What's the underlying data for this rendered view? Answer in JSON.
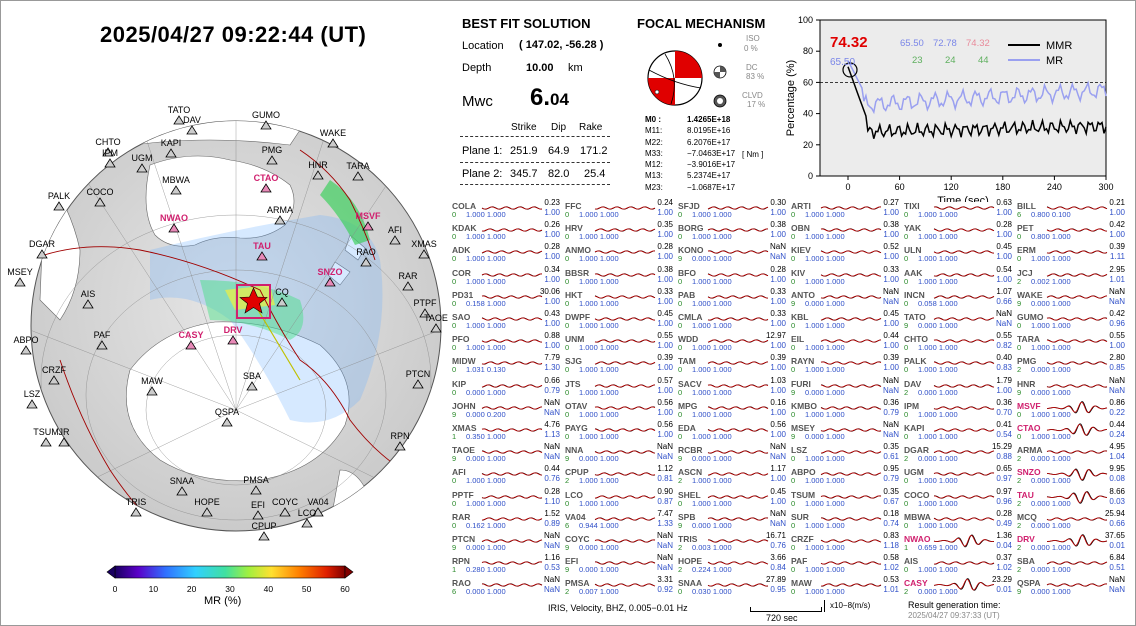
{
  "datetime": "2025/04/27  09:22:44 (UT)",
  "map": {
    "stations": [
      {
        "n": "TATO",
        "hl": false
      },
      {
        "n": "GUMO",
        "hl": false
      },
      {
        "n": "DAV",
        "hl": false
      },
      {
        "n": "CHTO",
        "hl": false
      },
      {
        "n": "KAPI",
        "hl": false
      },
      {
        "n": "IPM",
        "hl": false
      },
      {
        "n": "UGM",
        "hl": false
      },
      {
        "n": "PMG",
        "hl": false
      },
      {
        "n": "WAKE",
        "hl": false
      },
      {
        "n": "HNR",
        "hl": false
      },
      {
        "n": "TARA",
        "hl": false
      },
      {
        "n": "PALK",
        "hl": false
      },
      {
        "n": "COCO",
        "hl": false
      },
      {
        "n": "MBWA",
        "hl": false
      },
      {
        "n": "CTAO",
        "hl": true
      },
      {
        "n": "NWAO",
        "hl": true
      },
      {
        "n": "ARMA",
        "hl": false
      },
      {
        "n": "MSVF",
        "hl": true
      },
      {
        "n": "AFI",
        "hl": false
      },
      {
        "n": "DGAR",
        "hl": false
      },
      {
        "n": "TAU",
        "hl": true
      },
      {
        "n": "XMAS",
        "hl": false
      },
      {
        "n": "RAO",
        "hl": false
      },
      {
        "n": "SNZO",
        "hl": true
      },
      {
        "n": "RAR",
        "hl": false
      },
      {
        "n": "MSEY",
        "hl": false
      },
      {
        "n": "AIS",
        "hl": false
      },
      {
        "n": "PTPF",
        "hl": false
      },
      {
        "n": "TAOE",
        "hl": false
      },
      {
        "n": "PAF",
        "hl": false
      },
      {
        "n": "CASY",
        "hl": true
      },
      {
        "n": "DRV",
        "hl": true
      },
      {
        "n": "ABPO",
        "hl": false
      },
      {
        "n": "CRZF",
        "hl": false
      },
      {
        "n": "MAW",
        "hl": false
      },
      {
        "n": "SBA",
        "hl": false
      },
      {
        "n": "PTCN",
        "hl": false
      },
      {
        "n": "LSZ",
        "hl": false
      },
      {
        "n": "QSPA",
        "hl": false
      },
      {
        "n": "TSUM",
        "hl": false
      },
      {
        "n": "JR",
        "hl": false
      },
      {
        "n": "RPN",
        "hl": false
      },
      {
        "n": "SNAA",
        "hl": false
      },
      {
        "n": "PMSA",
        "hl": false
      },
      {
        "n": "TRIS",
        "hl": false
      },
      {
        "n": "HOPE",
        "hl": false
      },
      {
        "n": "EFI",
        "hl": false
      },
      {
        "n": "COYC",
        "hl": false
      },
      {
        "n": "VA04",
        "hl": false
      },
      {
        "n": "LCO",
        "hl": false
      },
      {
        "n": "CPUP",
        "hl": false
      },
      {
        "n": "CQ",
        "hl": false
      }
    ],
    "colorbar": {
      "ticks": [
        "0",
        "10",
        "20",
        "30",
        "40",
        "50",
        "60"
      ],
      "label": "MR (%)"
    }
  },
  "solution": {
    "title": "BEST FIT SOLUTION",
    "location_label": "Location",
    "location": "( 147.02,  -56.28 )",
    "depth_label": "Depth",
    "depth": "10.00",
    "depth_unit": "km",
    "mw_label": "Mwc",
    "mw_int": "6.",
    "mw_dec": "04",
    "col_strike": "Strike",
    "col_dip": "Dip",
    "col_rake": "Rake",
    "plane1_label": "Plane 1:",
    "p1_strike": "251.9",
    "p1_dip": "64.9",
    "p1_rake": "171.2",
    "plane2_label": "Plane 2:",
    "p2_strike": "345.7",
    "p2_dip": "82.0",
    "p2_rake": "25.4"
  },
  "mechanism": {
    "title": "FOCAL MECHANISM",
    "iso_label": "ISO",
    "iso": "0  %",
    "dc_label": "DC",
    "dc": "83 %",
    "clvd_label": "CLVD",
    "clvd": "17 %",
    "tensor": [
      {
        "k": "M0",
        "sep": ":",
        "v": "1.4265E+18"
      },
      {
        "k": "M11:",
        "sep": "",
        "v": "8.0195E+16"
      },
      {
        "k": "M22:",
        "sep": "",
        "v": "6.2076E+17"
      },
      {
        "k": "M33:",
        "sep": "",
        "v": "−7.0463E+17"
      },
      {
        "k": "M12:",
        "sep": "",
        "v": "−3.9016E+17"
      },
      {
        "k": "M13:",
        "sep": "",
        "v": "5.2374E+17"
      },
      {
        "k": "M23:",
        "sep": "",
        "v": "−1.0687E+17"
      }
    ],
    "unit": "[ Nm ]"
  },
  "graph": {
    "ylabel": "Percentage (%)",
    "xlabel": "Time (sec)",
    "yticks": [
      "0",
      "20",
      "40",
      "60",
      "80",
      "100"
    ],
    "xticks": [
      "0",
      "60",
      "120",
      "180",
      "240",
      "300"
    ],
    "peak": "74.32",
    "peak2": "65.50",
    "mr_vals": [
      "65.50",
      "72.78",
      "74.32"
    ],
    "grn_vals": [
      "23",
      "24",
      "44"
    ],
    "legend_mmr": "MMR",
    "legend_mr": "MR"
  },
  "waves": [
    [
      [
        "COLA",
        "0.23",
        "1.00",
        "0",
        "1.000",
        "1.000",
        false
      ],
      [
        "KDAK",
        "0.26",
        "1.00",
        "0",
        "1.000",
        "1.000",
        false
      ],
      [
        "ADK",
        "0.28",
        "1.00",
        "0",
        "1.000",
        "1.000",
        false
      ],
      [
        "COR",
        "0.34",
        "1.00",
        "0",
        "1.000",
        "1.000",
        false
      ],
      [
        "PD31",
        "30.06",
        "1.00",
        "0",
        "0.158",
        "1.000",
        false
      ],
      [
        "SAO",
        "0.43",
        "1.00",
        "0",
        "1.000",
        "1.000",
        false
      ],
      [
        "PFO",
        "0.88",
        "1.00",
        "0",
        "1.000",
        "1.000",
        false
      ],
      [
        "MIDW",
        "7.79",
        "1.30",
        "0",
        "1.031",
        "0.130",
        false
      ],
      [
        "KIP",
        "0.66",
        "0.79",
        "0",
        "0.000",
        "1.000",
        false
      ],
      [
        "JOHN",
        "NaN",
        "NaN",
        "9",
        "0.000",
        "0.200",
        false
      ],
      [
        "XMAS",
        "4.76",
        "1.13",
        "1",
        "0.350",
        "1.000",
        false
      ],
      [
        "TAOE",
        "NaN",
        "NaN",
        "9",
        "0.000",
        "1.000",
        false
      ],
      [
        "AFI",
        "0.44",
        "0.76",
        "0",
        "1.000",
        "1.000",
        false
      ],
      [
        "PPTF",
        "0.28",
        "1.10",
        "0",
        "1.000",
        "1.000",
        false
      ],
      [
        "RAR",
        "1.52",
        "0.89",
        "0",
        "0.162",
        "1.000",
        false
      ],
      [
        "PTCN",
        "NaN",
        "NaN",
        "9",
        "0.000",
        "1.000",
        false
      ],
      [
        "RPN",
        "1.16",
        "0.53",
        "1",
        "0.280",
        "1.000",
        false
      ],
      [
        "RAO",
        "NaN",
        "NaN",
        "6",
        "0.000",
        "1.000",
        false
      ]
    ],
    [
      [
        "FFC",
        "0.24",
        "1.00",
        "0",
        "1.000",
        "1.000",
        false
      ],
      [
        "HRV",
        "0.35",
        "1.00",
        "0",
        "1.000",
        "1.000",
        false
      ],
      [
        "ANMO",
        "0.28",
        "1.00",
        "0",
        "1.000",
        "1.000",
        false
      ],
      [
        "BBSR",
        "0.38",
        "1.00",
        "0",
        "1.000",
        "1.000",
        false
      ],
      [
        "HKT",
        "0.33",
        "1.00",
        "0",
        "1.000",
        "1.000",
        false
      ],
      [
        "DWPF",
        "0.45",
        "1.00",
        "0",
        "1.000",
        "1.000",
        false
      ],
      [
        "UNM",
        "0.55",
        "1.00",
        "0",
        "1.000",
        "1.000",
        false
      ],
      [
        "SJG",
        "0.39",
        "1.00",
        "0",
        "1.000",
        "1.000",
        false
      ],
      [
        "JTS",
        "0.57",
        "1.00",
        "0",
        "1.000",
        "1.000",
        false
      ],
      [
        "OTAV",
        "0.56",
        "1.00",
        "0",
        "1.000",
        "1.000",
        false
      ],
      [
        "PAYG",
        "0.56",
        "1.00",
        "0",
        "1.000",
        "1.000",
        false
      ],
      [
        "NNA",
        "NaN",
        "NaN",
        "9",
        "0.000",
        "1.000",
        false
      ],
      [
        "CPUP",
        "1.12",
        "0.81",
        "2",
        "1.000",
        "1.000",
        false
      ],
      [
        "LCO",
        "0.90",
        "0.87",
        "0",
        "1.000",
        "1.000",
        false
      ],
      [
        "VA04",
        "7.47",
        "1.33",
        "6",
        "0.944",
        "1.000",
        false
      ],
      [
        "COYC",
        "NaN",
        "NaN",
        "9",
        "0.000",
        "1.000",
        false
      ],
      [
        "EFI",
        "NaN",
        "NaN",
        "9",
        "0.000",
        "1.000",
        false
      ],
      [
        "PMSA",
        "3.31",
        "0.92",
        "2",
        "0.007",
        "1.000",
        false
      ]
    ],
    [
      [
        "SFJD",
        "0.30",
        "1.00",
        "0",
        "1.000",
        "1.000",
        false
      ],
      [
        "BORG",
        "0.38",
        "1.00",
        "0",
        "1.000",
        "1.000",
        false
      ],
      [
        "KONO",
        "NaN",
        "NaN",
        "9",
        "0.000",
        "1.000",
        false
      ],
      [
        "BFO",
        "0.28",
        "1.00",
        "0",
        "1.000",
        "1.000",
        false
      ],
      [
        "PAB",
        "0.33",
        "1.00",
        "0",
        "1.000",
        "1.000",
        false
      ],
      [
        "CMLA",
        "0.33",
        "1.00",
        "0",
        "1.000",
        "1.000",
        false
      ],
      [
        "WDD",
        "12.97",
        "1.00",
        "0",
        "1.000",
        "1.000",
        false
      ],
      [
        "TAM",
        "0.39",
        "1.00",
        "0",
        "1.000",
        "1.000",
        false
      ],
      [
        "SACV",
        "1.03",
        "1.00",
        "0",
        "1.000",
        "1.000",
        false
      ],
      [
        "MPG",
        "0.16",
        "1.00",
        "0",
        "1.000",
        "1.000",
        false
      ],
      [
        "EDA",
        "0.56",
        "1.00",
        "0",
        "1.000",
        "1.000",
        false
      ],
      [
        "RCBR",
        "NaN",
        "NaN",
        "9",
        "0.000",
        "1.000",
        false
      ],
      [
        "ASCN",
        "1.17",
        "1.00",
        "2",
        "1.000",
        "1.000",
        false
      ],
      [
        "SHEL",
        "0.45",
        "1.00",
        "0",
        "1.000",
        "1.000",
        false
      ],
      [
        "SPB",
        "NaN",
        "NaN",
        "9",
        "0.000",
        "1.000",
        false
      ],
      [
        "TRIS",
        "16.71",
        "0.76",
        "2",
        "0.003",
        "1.000",
        false
      ],
      [
        "HOPE",
        "3.66",
        "0.84",
        "2",
        "0.224",
        "1.000",
        false
      ],
      [
        "SNAA",
        "27.89",
        "0.95",
        "0",
        "0.030",
        "1.000",
        false
      ]
    ],
    [
      [
        "ARTI",
        "0.27",
        "1.00",
        "0",
        "1.000",
        "1.000",
        false
      ],
      [
        "OBN",
        "0.38",
        "1.00",
        "0",
        "1.000",
        "1.000",
        false
      ],
      [
        "KIEV",
        "0.52",
        "1.00",
        "0",
        "1.000",
        "1.000",
        false
      ],
      [
        "KIV",
        "0.33",
        "1.00",
        "0",
        "1.000",
        "1.000",
        false
      ],
      [
        "ANTO",
        "NaN",
        "NaN",
        "9",
        "0.000",
        "1.000",
        false
      ],
      [
        "KBL",
        "0.45",
        "1.00",
        "0",
        "1.000",
        "1.000",
        false
      ],
      [
        "EIL",
        "0.44",
        "1.00",
        "0",
        "1.000",
        "1.000",
        false
      ],
      [
        "RAYN",
        "0.39",
        "1.00",
        "0",
        "1.000",
        "1.000",
        false
      ],
      [
        "FURI",
        "NaN",
        "NaN",
        "9",
        "0.000",
        "1.000",
        false
      ],
      [
        "KMBO",
        "0.36",
        "0.79",
        "0",
        "1.000",
        "1.000",
        false
      ],
      [
        "MSEY",
        "NaN",
        "NaN",
        "9",
        "0.000",
        "1.000",
        false
      ],
      [
        "LSZ",
        "0.35",
        "0.61",
        "0",
        "1.000",
        "1.000",
        false
      ],
      [
        "ABPO",
        "0.95",
        "0.79",
        "0",
        "1.000",
        "1.000",
        false
      ],
      [
        "TSUM",
        "0.35",
        "0.67",
        "0",
        "1.000",
        "1.000",
        false
      ],
      [
        "SUR",
        "0.18",
        "0.74",
        "0",
        "1.000",
        "1.000",
        false
      ],
      [
        "CRZF",
        "0.83",
        "1.18",
        "0",
        "1.000",
        "1.000",
        false
      ],
      [
        "PAF",
        "0.58",
        "1.02",
        "0",
        "1.000",
        "1.000",
        false
      ],
      [
        "MAW",
        "0.53",
        "1.01",
        "0",
        "1.000",
        "1.000",
        false
      ]
    ],
    [
      [
        "TIXI",
        "0.63",
        "1.00",
        "0",
        "1.000",
        "1.000",
        false
      ],
      [
        "YAK",
        "0.28",
        "1.00",
        "0",
        "1.000",
        "1.000",
        false
      ],
      [
        "ULN",
        "0.45",
        "1.00",
        "0",
        "1.000",
        "1.000",
        false
      ],
      [
        "AAK",
        "0.54",
        "1.00",
        "0",
        "1.000",
        "1.000",
        false
      ],
      [
        "INCN",
        "1.07",
        "0.66",
        "0",
        "0.058",
        "1.000",
        false
      ],
      [
        "TATO",
        "NaN",
        "NaN",
        "9",
        "0.000",
        "1.000",
        false
      ],
      [
        "CHTO",
        "0.55",
        "0.82",
        "0",
        "1.000",
        "1.000",
        false
      ],
      [
        "PALK",
        "0.40",
        "0.83",
        "0",
        "1.000",
        "1.000",
        false
      ],
      [
        "DAV",
        "1.79",
        "1.00",
        "2",
        "0.000",
        "1.000",
        false
      ],
      [
        "IPM",
        "0.36",
        "0.70",
        "0",
        "1.000",
        "1.000",
        false
      ],
      [
        "KAPI",
        "0.41",
        "0.54",
        "0",
        "1.000",
        "1.000",
        false
      ],
      [
        "DGAR",
        "15.29",
        "0.88",
        "2",
        "0.000",
        "1.000",
        false
      ],
      [
        "UGM",
        "0.65",
        "0.97",
        "0",
        "1.000",
        "1.000",
        false
      ],
      [
        "COCO",
        "0.97",
        "0.96",
        "0",
        "1.000",
        "1.000",
        false
      ],
      [
        "MBWA",
        "0.28",
        "0.49",
        "0",
        "1.000",
        "1.000",
        false
      ],
      [
        "NWAO",
        "1.36",
        "0.04",
        "1",
        "0.659",
        "1.000",
        true
      ],
      [
        "AIS",
        "0.37",
        "1.02",
        "0",
        "1.000",
        "1.000",
        false
      ],
      [
        "CASY",
        "23.29",
        "0.01",
        "2",
        "0.000",
        "1.000",
        true
      ]
    ],
    [
      [
        "BILL",
        "0.21",
        "1.00",
        "6",
        "0.800",
        "0.100",
        false
      ],
      [
        "PET",
        "0.42",
        "1.00",
        "0",
        "0.800",
        "1.000",
        false
      ],
      [
        "ERM",
        "0.39",
        "1.11",
        "0",
        "1.000",
        "1.000",
        false
      ],
      [
        "JCJ",
        "2.95",
        "1.01",
        "2",
        "0.002",
        "1.000",
        false
      ],
      [
        "WAKE",
        "NaN",
        "NaN",
        "9",
        "0.000",
        "1.000",
        false
      ],
      [
        "GUMO",
        "0.42",
        "0.96",
        "0",
        "1.000",
        "1.000",
        false
      ],
      [
        "TARA",
        "0.55",
        "1.00",
        "0",
        "1.000",
        "1.000",
        false
      ],
      [
        "PMG",
        "2.80",
        "0.85",
        "2",
        "0.000",
        "1.000",
        false
      ],
      [
        "HNR",
        "NaN",
        "NaN",
        "9",
        "0.000",
        "1.000",
        false
      ],
      [
        "MSVF",
        "0.86",
        "0.22",
        "0",
        "1.000",
        "1.000",
        true
      ],
      [
        "CTAO",
        "0.44",
        "0.24",
        "0",
        "1.000",
        "1.000",
        true
      ],
      [
        "ARMA",
        "4.95",
        "1.04",
        "2",
        "0.000",
        "1.000",
        false
      ],
      [
        "SNZO",
        "9.95",
        "0.08",
        "2",
        "0.000",
        "1.000",
        true
      ],
      [
        "TAU",
        "8.66",
        "0.03",
        "2",
        "0.000",
        "1.000",
        true
      ],
      [
        "MCQ",
        "25.94",
        "0.66",
        "2",
        "0.000",
        "1.000",
        false
      ],
      [
        "DRV",
        "37.65",
        "0.01",
        "2",
        "0.000",
        "1.000",
        true
      ],
      [
        "SBA",
        "6.84",
        "0.51",
        "2",
        "0.000",
        "1.000",
        false
      ],
      [
        "QSPA",
        "NaN",
        "NaN",
        "9",
        "0.000",
        "1.000",
        false
      ]
    ]
  ],
  "footer": {
    "filter": "IRIS, Velocity,   BHZ, 0.005−0.01 Hz",
    "scale_time": "720 sec",
    "scale_amp": "x10−8(m/s)",
    "gen_label": "Result generation time:",
    "gen_time": "2025/04/27 09:37:33 (UT)"
  }
}
